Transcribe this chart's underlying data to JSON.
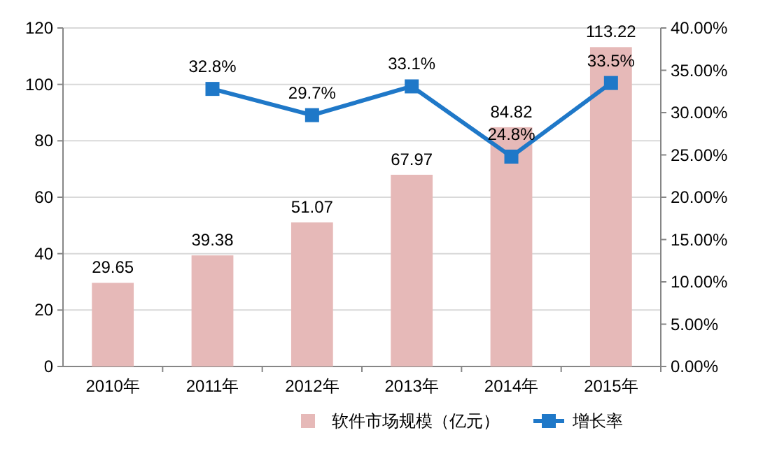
{
  "chart_data": {
    "type": "bar",
    "categories": [
      "2010年",
      "2011年",
      "2012年",
      "2013年",
      "2014年",
      "2015年"
    ],
    "series": [
      {
        "name": "软件市场规模（亿元）",
        "color": "#e6b9b8",
        "values": [
          29.65,
          39.38,
          51.07,
          67.97,
          84.82,
          113.22
        ],
        "value_labels": [
          "29.65",
          "39.38",
          "51.07",
          "67.97",
          "84.82",
          "113.22"
        ]
      },
      {
        "name": "增长率",
        "type": "line",
        "axis": "y2",
        "color": "#1f78c8",
        "values": [
          null,
          32.8,
          29.7,
          33.1,
          24.8,
          33.5
        ],
        "value_labels": [
          null,
          "32.8%",
          "29.7%",
          "33.1%",
          "24.8%",
          "33.5%"
        ]
      }
    ],
    "ylim": [
      0,
      120
    ],
    "yticks": [
      0,
      20,
      40,
      60,
      80,
      100,
      120
    ],
    "y2lim": [
      0,
      40
    ],
    "y2ticks": [
      {
        "value": 0,
        "label": "0.00%"
      },
      {
        "value": 5,
        "label": "5.00%"
      },
      {
        "value": 10,
        "label": "10.00%"
      },
      {
        "value": 15,
        "label": "15.00%"
      },
      {
        "value": 20,
        "label": "20.00%"
      },
      {
        "value": 25,
        "label": "25.00%"
      },
      {
        "value": 30,
        "label": "30.00%"
      },
      {
        "value": 35,
        "label": "35.00%"
      },
      {
        "value": 40,
        "label": "40.00%"
      }
    ],
    "grid": "y",
    "legend": "bottom",
    "marker": "square",
    "line_style": "solid"
  }
}
